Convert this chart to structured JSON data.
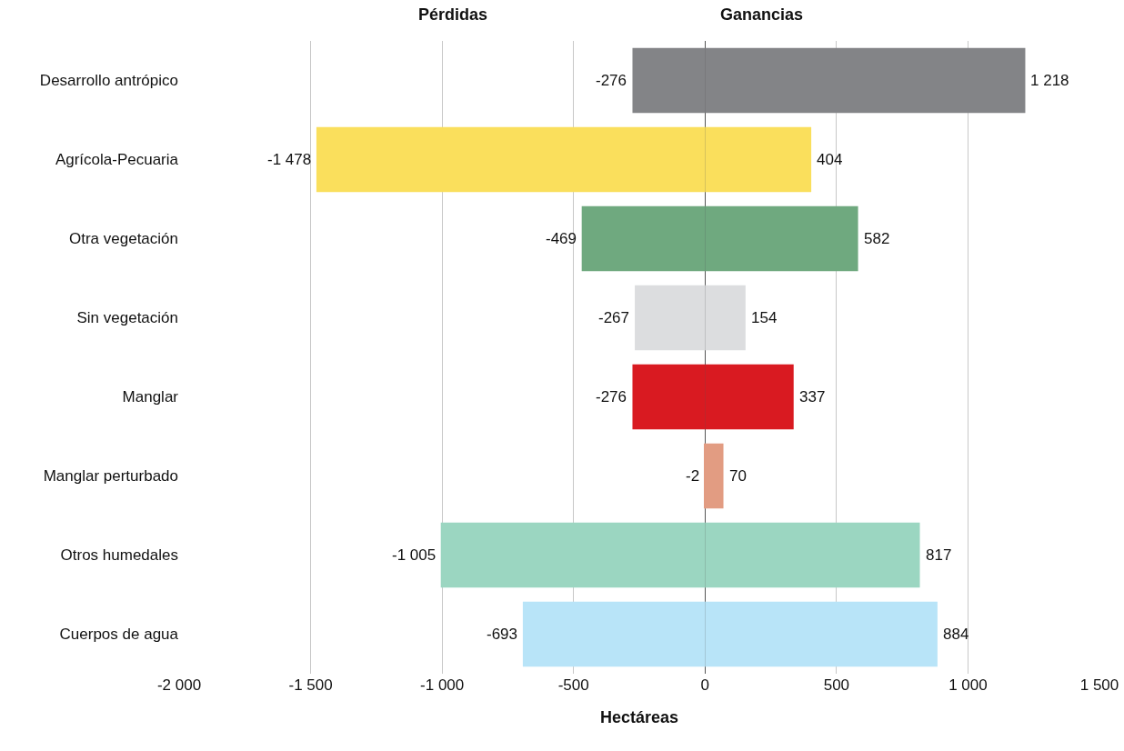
{
  "chart_data": {
    "type": "bar",
    "orientation": "horizontal",
    "stacked": true,
    "xlabel": "Hectáreas",
    "annotations": [
      "Pérdidas",
      "Ganancias"
    ],
    "categories": [
      "Desarrollo antrópico",
      "Agrícola-Pecuaria",
      "Otra vegetación",
      "Sin vegetación",
      "Manglar",
      "Manglar perturbado",
      "Otros humedales",
      "Cuerpos de agua"
    ],
    "series": [
      {
        "colors": [
          "#838487",
          "#fadf5c",
          "#6fa97f",
          "#dcdddf",
          "#d91a21",
          "#e29c82",
          "#9bd6c1",
          "#b8e4f8"
        ],
        "values": [
          -276,
          -1478,
          -469,
          -267,
          -276,
          -2,
          -1005,
          -693
        ],
        "value_labels": [
          "-276",
          "-1 478",
          "-469",
          "-267",
          "-276",
          "-2",
          "-1 005",
          "-693"
        ]
      },
      {
        "colors": [
          "#838487",
          "#fadf5c",
          "#6fa97f",
          "#dcdddf",
          "#d91a21",
          "#e29c82",
          "#9bd6c1",
          "#b8e4f8"
        ],
        "values": [
          1218,
          404,
          582,
          154,
          337,
          70,
          817,
          884
        ],
        "value_labels": [
          "1 218",
          "404",
          "582",
          "154",
          "337",
          "70",
          "817",
          "884"
        ]
      }
    ],
    "xlim": [
      -2000,
      1500
    ],
    "xticks": [
      {
        "value": -2000,
        "label": "-2 000"
      },
      {
        "value": -1500,
        "label": "-1 500"
      },
      {
        "value": -1000,
        "label": "-1 000"
      },
      -500,
      0,
      500,
      {
        "value": 1000,
        "label": "1 000"
      },
      {
        "value": 1500,
        "label": "1 500"
      }
    ],
    "grid": "x"
  }
}
